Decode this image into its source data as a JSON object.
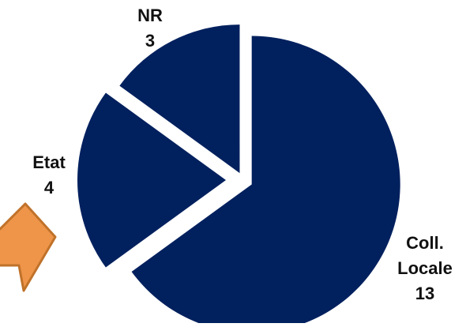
{
  "colors": {
    "slice_fill": "#01205e",
    "arrow_fill": "#ee9549",
    "arrow_stroke": "#c0722a",
    "background": "#ffffff"
  },
  "chart_data": {
    "type": "pie",
    "exploded": true,
    "categories": [
      "Coll. Locale",
      "Etat",
      "NR"
    ],
    "values": [
      13,
      4,
      3
    ],
    "slices": [
      {
        "name_lines": [
          "Coll.",
          "Locale"
        ],
        "value": "13"
      },
      {
        "name_lines": [
          "Etat"
        ],
        "value": "4"
      },
      {
        "name_lines": [
          "NR"
        ],
        "value": "3"
      }
    ]
  },
  "decorations": {
    "arrow": {
      "icon": "orange-arrow-icon",
      "direction": "right"
    }
  }
}
